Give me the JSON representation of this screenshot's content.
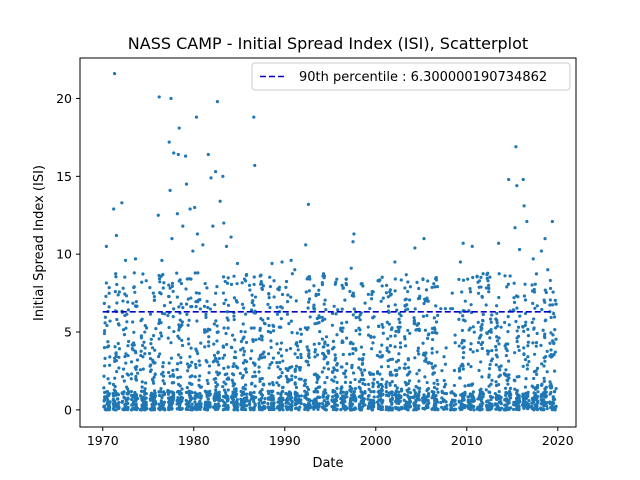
{
  "chart_data": {
    "type": "scatter",
    "title": "NASS CAMP - Initial Spread Index (ISI), Scatterplot",
    "xlabel": "Date",
    "ylabel": "Initial Spread Index (ISI)",
    "xlim": [
      1967.5,
      2022.0
    ],
    "ylim": [
      -1.1,
      22.6
    ],
    "x_ticks": [
      1970,
      1980,
      1990,
      2000,
      2010,
      2020
    ],
    "y_ticks": [
      0,
      5,
      10,
      15,
      20
    ],
    "grid": false,
    "legend_position": "upper right",
    "legend_label": "90th percentile : 6.300000190734862",
    "reference_line": {
      "name": "90th percentile",
      "value": 6.300000190734862,
      "x_range": [
        1970.0,
        2019.5
      ],
      "style": "dashed",
      "color": "#0000cc"
    },
    "series": [
      {
        "color": "#1f77b4",
        "points": [
          [
            1971.3,
            21.6
          ],
          [
            1972.1,
            13.3
          ],
          [
            1971.2,
            12.9
          ],
          [
            1971.5,
            11.2
          ],
          [
            1970.4,
            10.5
          ],
          [
            1972.5,
            9.6
          ],
          [
            1973.6,
            9.7
          ],
          [
            1976.2,
            20.1
          ],
          [
            1977.5,
            20.0
          ],
          [
            1978.4,
            18.1
          ],
          [
            1977.3,
            17.2
          ],
          [
            1978.3,
            16.4
          ],
          [
            1979.1,
            16.3
          ],
          [
            1977.8,
            16.5
          ],
          [
            1977.4,
            14.1
          ],
          [
            1979.2,
            14.5
          ],
          [
            1976.1,
            12.5
          ],
          [
            1978.2,
            12.6
          ],
          [
            1979.6,
            12.9
          ],
          [
            1980.1,
            13.0
          ],
          [
            1978.8,
            11.8
          ],
          [
            1980.4,
            11.3
          ],
          [
            1977.6,
            11.0
          ],
          [
            1981.0,
            10.6
          ],
          [
            1979.9,
            10.2
          ],
          [
            1976.5,
            9.6
          ],
          [
            1980.3,
            18.8
          ],
          [
            1982.6,
            19.8
          ],
          [
            1981.6,
            16.4
          ],
          [
            1982.4,
            15.3
          ],
          [
            1983.2,
            15.0
          ],
          [
            1981.9,
            14.9
          ],
          [
            1982.9,
            13.4
          ],
          [
            1983.3,
            12.0
          ],
          [
            1982.1,
            11.8
          ],
          [
            1984.1,
            11.1
          ],
          [
            1983.6,
            10.5
          ],
          [
            1984.8,
            9.4
          ],
          [
            1986.6,
            18.8
          ],
          [
            1986.7,
            15.7
          ],
          [
            1985.8,
            8.7
          ],
          [
            1987.3,
            8.6
          ],
          [
            1988.6,
            9.4
          ],
          [
            1989.7,
            9.5
          ],
          [
            1990.7,
            9.6
          ],
          [
            1991.1,
            9.0
          ],
          [
            1992.3,
            10.6
          ],
          [
            1992.6,
            13.2
          ],
          [
            1994.2,
            8.6
          ],
          [
            1995.6,
            8.2
          ],
          [
            1996.3,
            8.0
          ],
          [
            1997.6,
            11.3
          ],
          [
            1997.5,
            10.8
          ],
          [
            1997.3,
            9.1
          ],
          [
            1998.5,
            8.1
          ],
          [
            1999.6,
            7.6
          ],
          [
            2002.1,
            9.5
          ],
          [
            2003.5,
            7.6
          ],
          [
            2004.3,
            10.4
          ],
          [
            2005.3,
            11.0
          ],
          [
            2006.5,
            7.9
          ],
          [
            2008.4,
            7.5
          ],
          [
            2009.6,
            10.7
          ],
          [
            2010.6,
            10.5
          ],
          [
            2009.3,
            9.5
          ],
          [
            2010.1,
            8.4
          ],
          [
            2012.4,
            8.0
          ],
          [
            2013.5,
            10.7
          ],
          [
            2014.6,
            14.8
          ],
          [
            2015.4,
            16.9
          ],
          [
            2015.5,
            14.4
          ],
          [
            2016.2,
            14.8
          ],
          [
            2016.3,
            13.1
          ],
          [
            2015.3,
            11.7
          ],
          [
            2016.6,
            12.1
          ],
          [
            2015.8,
            10.3
          ],
          [
            2017.3,
            9.7
          ],
          [
            2018.6,
            11.0
          ],
          [
            2018.2,
            10.2
          ],
          [
            2019.4,
            12.1
          ],
          [
            2018.9,
            9.0
          ],
          [
            2019.2,
            7.8
          ]
        ]
      }
    ]
  }
}
